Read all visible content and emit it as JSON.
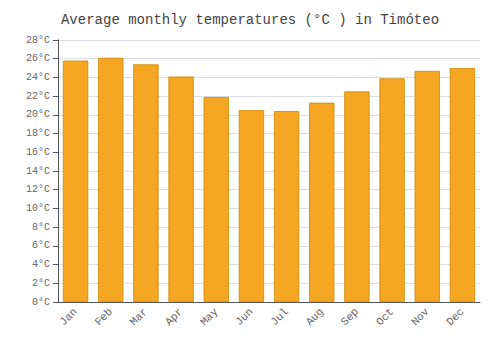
{
  "chart_data": {
    "type": "bar",
    "title": "Average monthly temperatures (°C ) in Timóteo",
    "categories": [
      "Jan",
      "Feb",
      "Mar",
      "Apr",
      "May",
      "Jun",
      "Jul",
      "Aug",
      "Sep",
      "Oct",
      "Nov",
      "Dec"
    ],
    "values": [
      25.8,
      26.1,
      25.4,
      24.1,
      21.9,
      20.5,
      20.4,
      21.3,
      22.5,
      23.9,
      24.7,
      25.0
    ],
    "color": "#F5A623",
    "ylim": [
      0,
      28
    ],
    "yticks": [
      {
        "value": 0,
        "label": "0°C"
      },
      {
        "value": 2,
        "label": "2°C"
      },
      {
        "value": 4,
        "label": "4°C"
      },
      {
        "value": 6,
        "label": "6°C"
      },
      {
        "value": 8,
        "label": "8°C"
      },
      {
        "value": 10,
        "label": "10°C"
      },
      {
        "value": 12,
        "label": "12°C"
      },
      {
        "value": 14,
        "label": "14°C"
      },
      {
        "value": 16,
        "label": "16°C"
      },
      {
        "value": 18,
        "label": "18°C"
      },
      {
        "value": 20,
        "label": "20°C"
      },
      {
        "value": 22,
        "label": "22°C"
      },
      {
        "value": 24,
        "label": "24°C"
      },
      {
        "value": 26,
        "label": "26°C"
      },
      {
        "value": 28,
        "label": "28°C"
      }
    ],
    "grid": true
  }
}
